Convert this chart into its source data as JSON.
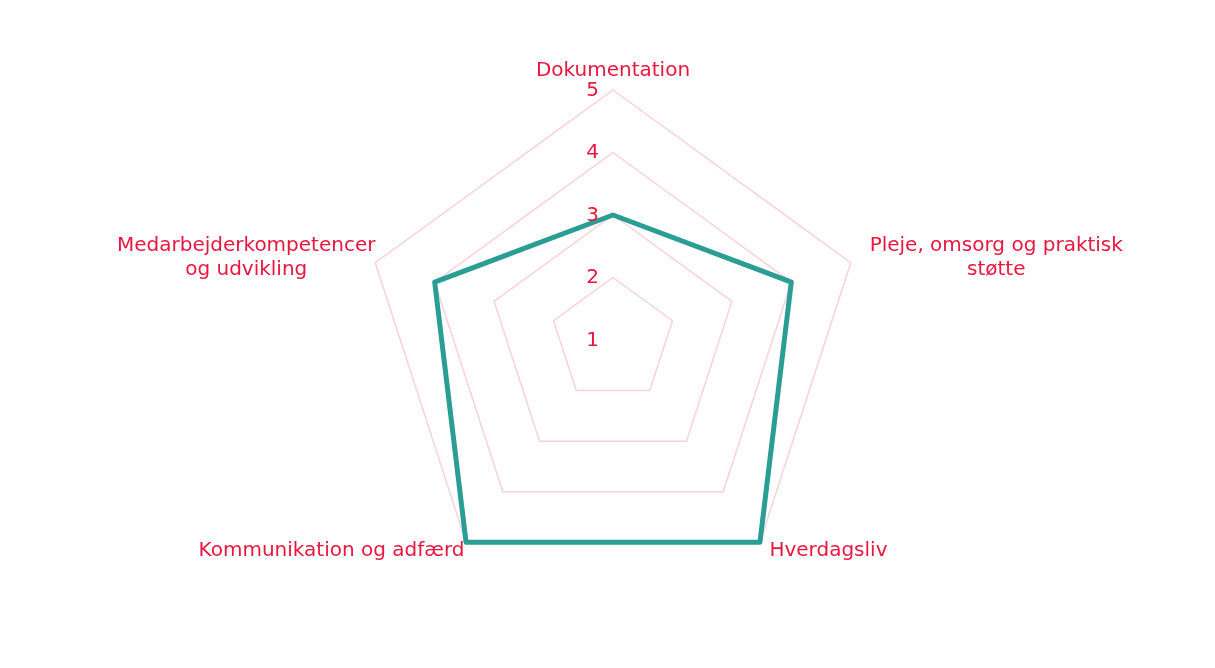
{
  "chart_data": {
    "type": "radar",
    "categories": [
      "Dokumentation",
      "Pleje, omsorg og praktisk\nstøtte",
      "Hverdagsliv",
      "Kommunikation og adfærd",
      "Medarbejderkompetencer\nog udvikling"
    ],
    "series": [
      {
        "color": "#2a9d94",
        "values": [
          3,
          4,
          5,
          5,
          4
        ]
      }
    ],
    "ylim": [
      1,
      5
    ],
    "yticks": [
      1,
      2,
      3,
      4,
      5
    ],
    "grid": true
  }
}
